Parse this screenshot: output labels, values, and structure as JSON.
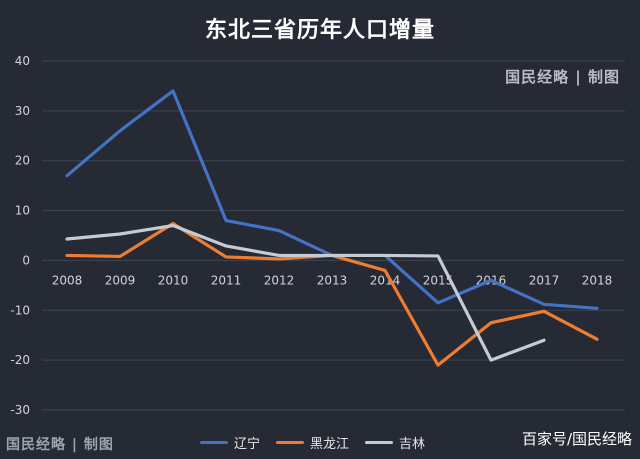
{
  "page": {
    "title": "东北三省历年人口增量",
    "brand_top": "国民经略 | 制图",
    "brand_bottom": "国民经略 | 制图",
    "source": "百家号/国民经略"
  },
  "chart_data": {
    "type": "line",
    "title": "东北三省历年人口增量",
    "xlabel": "",
    "ylabel": "",
    "x": [
      "2008",
      "2009",
      "2010",
      "2011",
      "2012",
      "2013",
      "2014",
      "2015",
      "2016",
      "2017",
      "2018"
    ],
    "ylim": [
      -30,
      40
    ],
    "yticks": [
      40,
      30,
      20,
      10,
      0,
      -10,
      -20,
      -30
    ],
    "grid": true,
    "legend": "bottom",
    "series": [
      {
        "name": "辽宁",
        "color": "#4472c4",
        "values": [
          17,
          26,
          34,
          8,
          6,
          1,
          1,
          -8.5,
          -4,
          -8.8,
          -9.6
        ]
      },
      {
        "name": "黑龙江",
        "color": "#ed7d31",
        "values": [
          1,
          0.8,
          7.4,
          0.7,
          0.3,
          1,
          -2,
          -21,
          -12.5,
          -10.2,
          -15.8
        ]
      },
      {
        "name": "吉林",
        "color": "#c5cad3",
        "values": [
          4.3,
          5.3,
          7,
          2.9,
          1,
          1,
          1,
          0.9,
          -20,
          -16,
          null
        ]
      }
    ]
  }
}
